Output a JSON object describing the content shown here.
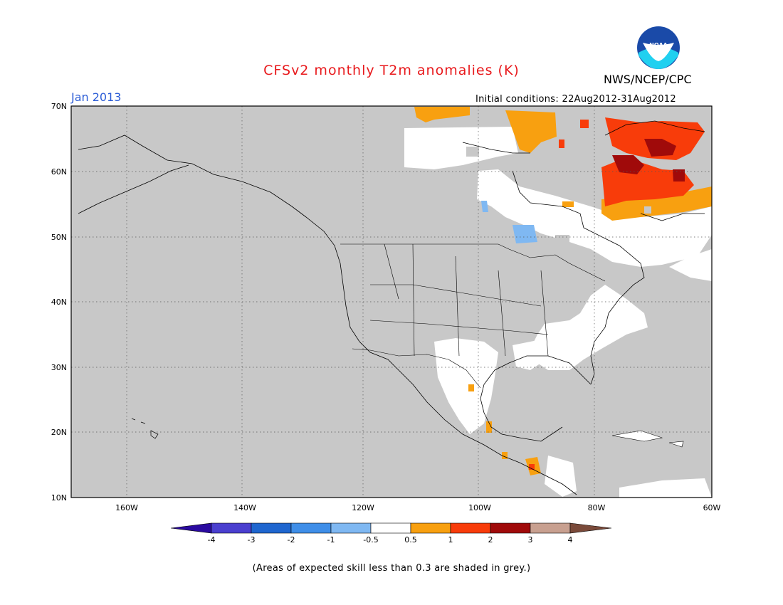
{
  "title": "CFSv2 monthly T2m anomalies (K)",
  "agency": "NWS/NCEP/CPC",
  "logo_text": "NOAA",
  "month": "Jan 2013",
  "initial_conditions": "Initial conditions: 22Aug2012-31Aug2012",
  "note": "(Areas of expected skill less than 0.3 are shaded in grey.)",
  "lat_labels": [
    "70N",
    "60N",
    "50N",
    "40N",
    "30N",
    "20N",
    "10N"
  ],
  "lon_labels": [
    "160W",
    "140W",
    "120W",
    "100W",
    "80W",
    "60W"
  ],
  "colorbar": {
    "labels": [
      "-4",
      "-3",
      "-2",
      "-1",
      "-0.5",
      "0.5",
      "1",
      "2",
      "3",
      "4"
    ],
    "colors": [
      "#2a0aa0",
      "#4a3fcf",
      "#1f66cf",
      "#3f8ee8",
      "#7fb8f2",
      "#ffffff",
      "#f8a010",
      "#f83c0a",
      "#a00a0a",
      "#c8a090",
      "#7a4a3a"
    ]
  },
  "colors": {
    "grey_mask": "#c8c8c8",
    "title": "#e8191c",
    "month": "#2b5cd6"
  }
}
